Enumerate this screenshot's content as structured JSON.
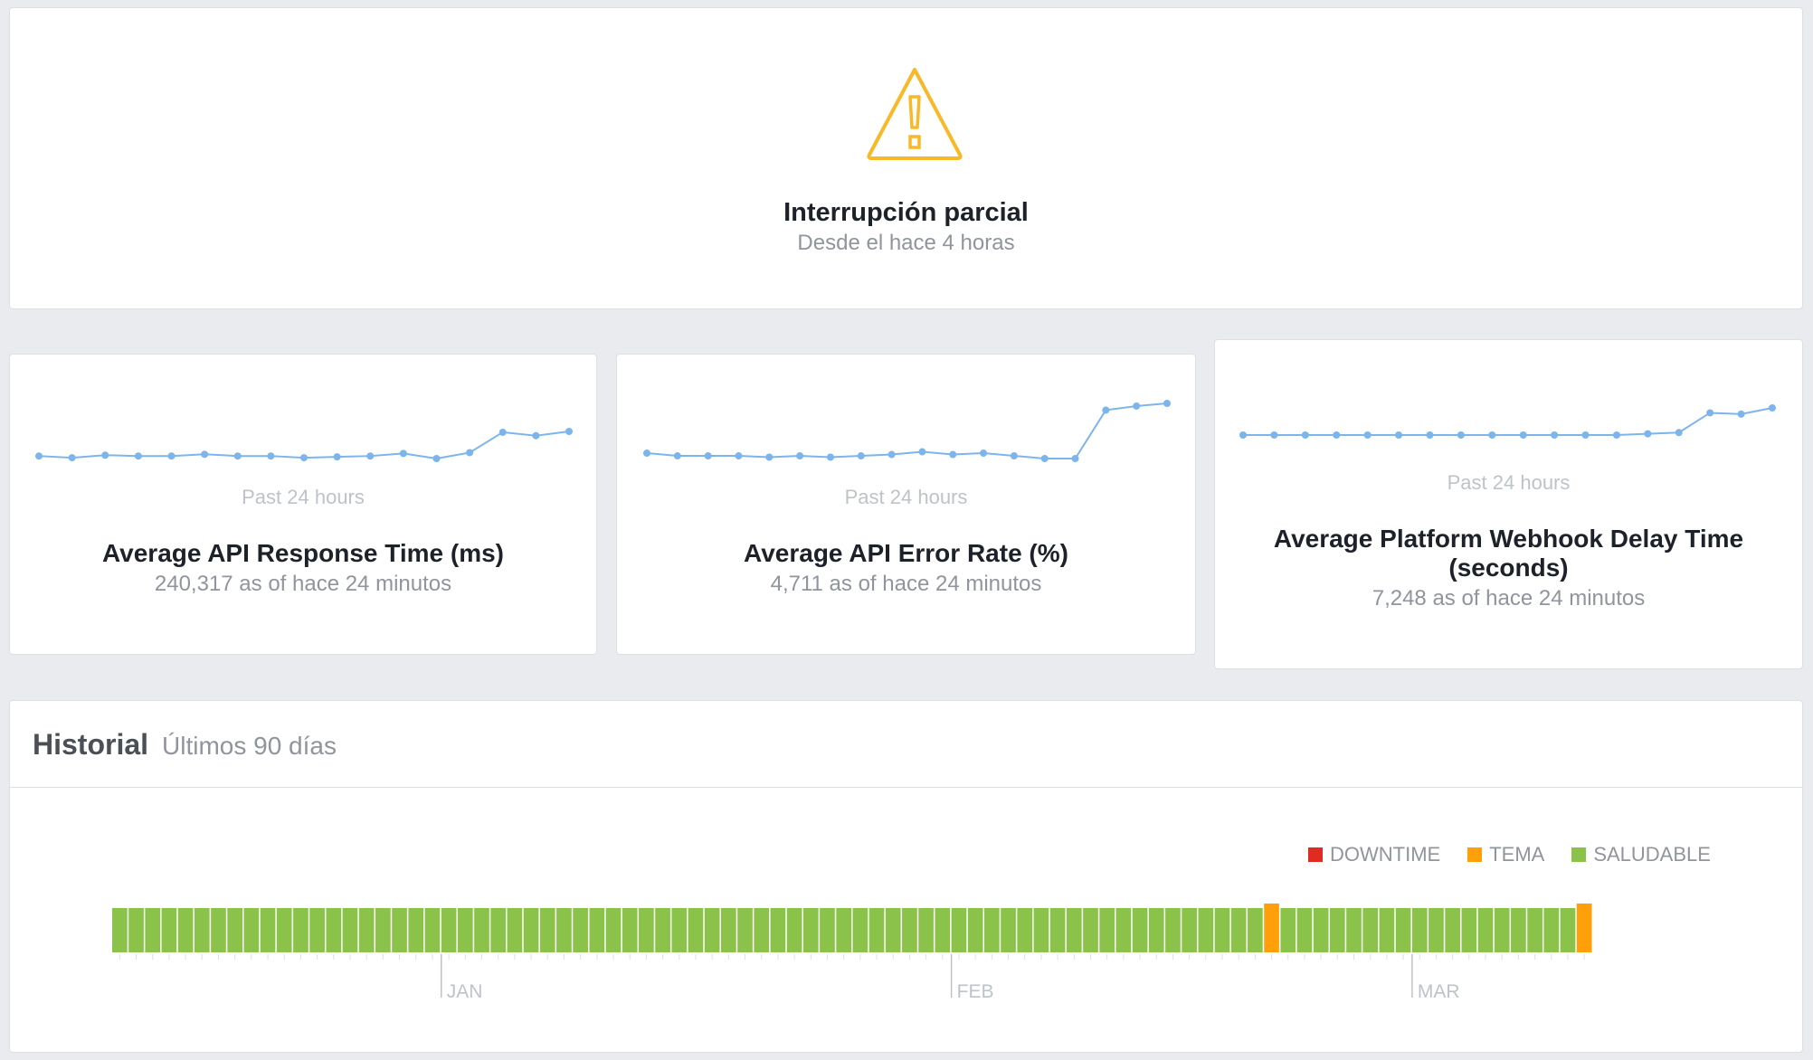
{
  "status": {
    "icon": "warning-triangle-icon",
    "title": "Interrupción parcial",
    "subtitle": "Desde el hace 4 horas",
    "color": "#f7b928"
  },
  "metrics": [
    {
      "period_label": "Past 24 hours",
      "title": "Average API Response Time (ms)",
      "value_text": "240,317 as of hace 24 minutos",
      "sparkline": [
        240,
        238,
        241,
        240,
        240,
        242,
        240,
        240,
        238,
        239,
        240,
        243,
        237,
        244,
        268,
        264,
        269
      ]
    },
    {
      "period_label": "Past 24 hours",
      "title": "Average API Error Rate (%)",
      "value_text": "4,711 as of hace 24 minutos",
      "sparkline": [
        40,
        38,
        38,
        38,
        37,
        38,
        37,
        38,
        39,
        41,
        39,
        40,
        38,
        36,
        36,
        72,
        75,
        77
      ]
    },
    {
      "period_label": "Past 24 hours",
      "title": "Average Platform Webhook Delay Time (seconds)",
      "value_text": "7,248 as of hace 24 minutos",
      "sparkline": [
        50,
        50,
        50,
        50,
        50,
        50,
        50,
        50,
        50,
        50,
        50,
        50,
        50,
        51,
        52,
        68,
        67,
        72
      ]
    }
  ],
  "sparkline_color": "#7cb5ec",
  "history": {
    "title": "Historial",
    "range": "Últimos 90 días",
    "legend": [
      {
        "label": "DOWNTIME",
        "color": "#e02b20"
      },
      {
        "label": "TEMA",
        "color": "#ff9f0a"
      },
      {
        "label": "SALUDABLE",
        "color": "#8bc34a"
      }
    ],
    "days": [
      "ok",
      "ok",
      "ok",
      "ok",
      "ok",
      "ok",
      "ok",
      "ok",
      "ok",
      "ok",
      "ok",
      "ok",
      "ok",
      "ok",
      "ok",
      "ok",
      "ok",
      "ok",
      "ok",
      "ok",
      "ok",
      "ok",
      "ok",
      "ok",
      "ok",
      "ok",
      "ok",
      "ok",
      "ok",
      "ok",
      "ok",
      "ok",
      "ok",
      "ok",
      "ok",
      "ok",
      "ok",
      "ok",
      "ok",
      "ok",
      "ok",
      "ok",
      "ok",
      "ok",
      "ok",
      "ok",
      "ok",
      "ok",
      "ok",
      "ok",
      "ok",
      "ok",
      "ok",
      "ok",
      "ok",
      "ok",
      "ok",
      "ok",
      "ok",
      "ok",
      "ok",
      "ok",
      "ok",
      "ok",
      "ok",
      "ok",
      "ok",
      "ok",
      "ok",
      "ok",
      "issue",
      "ok",
      "ok",
      "ok",
      "ok",
      "ok",
      "ok",
      "ok",
      "ok",
      "ok",
      "ok",
      "ok",
      "ok",
      "ok",
      "ok",
      "ok",
      "ok",
      "ok",
      "ok",
      "issue"
    ],
    "month_labels": [
      {
        "label": "JAN",
        "day_index": 20
      },
      {
        "label": "FEB",
        "day_index": 51
      },
      {
        "label": "MAR",
        "day_index": 79
      }
    ]
  }
}
